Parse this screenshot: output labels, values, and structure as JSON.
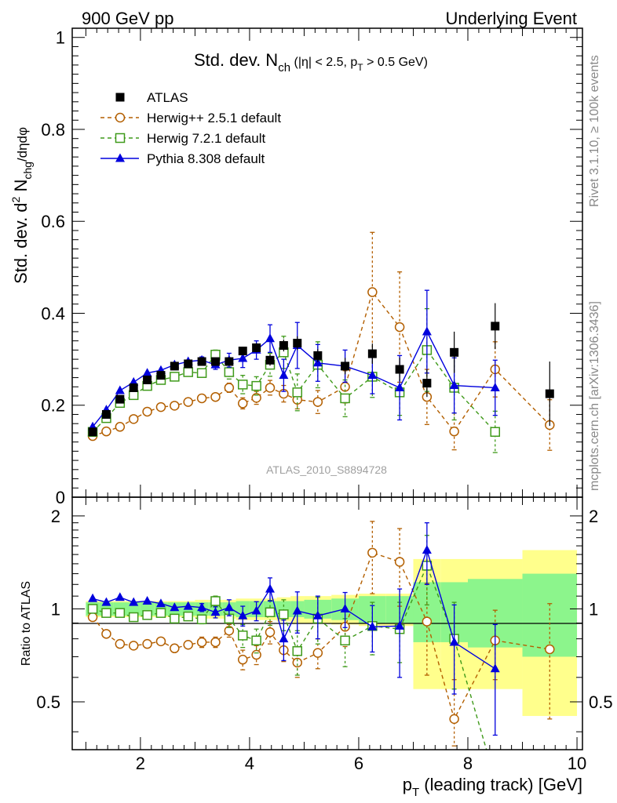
{
  "header": {
    "left": "900 GeV pp",
    "right": "Underlying Event"
  },
  "side_text": {
    "top": "Rivet 3.1.10, ≥ 100k events",
    "bottom": "mcplots.cern.ch [arXiv:1306.3436]"
  },
  "watermark": "ATLAS_2010_S8894728",
  "chart_data": {
    "type": "scatter",
    "title": {
      "main": "Std. dev. N",
      "sub": "ch",
      "rest": " (|η| < 2.5, p",
      "sub2": "T",
      "tail": " > 0.5 GeV)"
    },
    "ylabel": {
      "a": "Std. dev. d",
      "sup": "2",
      "b": " N",
      "sub": "chg",
      "c": "/dηdφ"
    },
    "ratio_ylabel": "Ratio to ATLAS",
    "xlabel": {
      "p": "p",
      "sub": "T",
      "rest": " (leading track) [GeV]"
    },
    "xlim": [
      0.75,
      10.1
    ],
    "ylim": [
      0,
      1.02
    ],
    "ratio_ylim": [
      0.35,
      2.3
    ],
    "x_ticks": [
      "2",
      "4",
      "6",
      "8",
      "10"
    ],
    "y_ticks": [
      "0",
      "0.2",
      "0.4",
      "0.6",
      "0.8",
      "1"
    ],
    "ratio_ticks": [
      "0.5",
      "1",
      "2"
    ],
    "legend": [
      {
        "label": "ATLAS",
        "color": "#000000",
        "marker": "square-filled"
      },
      {
        "label": "Herwig++ 2.5.1 default",
        "color": "#b35f00",
        "marker": "circle-open"
      },
      {
        "label": "Herwig 7.2.1 default",
        "color": "#3f9a1a",
        "marker": "square-open"
      },
      {
        "label": "Pythia 8.308 default",
        "color": "#0000dd",
        "marker": "triangle-filled"
      }
    ],
    "x": [
      1.125,
      1.375,
      1.625,
      1.875,
      2.125,
      2.375,
      2.625,
      2.875,
      3.125,
      3.375,
      3.625,
      3.875,
      4.125,
      4.375,
      4.625,
      4.875,
      5.25,
      5.75,
      6.25,
      6.75,
      7.25,
      7.75,
      8.5,
      9.5
    ],
    "xerr": [
      0.125,
      0.125,
      0.125,
      0.125,
      0.125,
      0.125,
      0.125,
      0.125,
      0.125,
      0.125,
      0.125,
      0.125,
      0.125,
      0.125,
      0.125,
      0.125,
      0.25,
      0.25,
      0.25,
      0.25,
      0.25,
      0.25,
      0.5,
      0.5
    ],
    "series": [
      {
        "name": "ATLAS",
        "values": [
          0.142,
          0.18,
          0.213,
          0.238,
          0.255,
          0.265,
          0.285,
          0.29,
          0.295,
          0.295,
          0.295,
          0.318,
          0.325,
          0.298,
          0.33,
          0.335,
          0.308,
          0.285,
          0.312,
          0.278,
          0.248,
          0.315,
          0.372,
          0.225
        ],
        "err": [
          0.003,
          0.003,
          0.003,
          0.003,
          0.004,
          0.004,
          0.005,
          0.005,
          0.006,
          0.007,
          0.008,
          0.009,
          0.01,
          0.012,
          0.013,
          0.015,
          0.014,
          0.018,
          0.022,
          0.025,
          0.03,
          0.045,
          0.05,
          0.07
        ],
        "band_total": [
          0.06,
          0.06,
          0.06,
          0.06,
          0.06,
          0.06,
          0.06,
          0.06,
          0.07,
          0.07,
          0.07,
          0.08,
          0.08,
          0.08,
          0.09,
          0.1,
          0.1,
          0.11,
          0.12,
          0.12,
          0.45,
          0.45,
          0.45,
          0.55
        ],
        "band_stat": [
          0.05,
          0.05,
          0.05,
          0.05,
          0.05,
          0.05,
          0.05,
          0.05,
          0.05,
          0.05,
          0.05,
          0.06,
          0.06,
          0.06,
          0.06,
          0.06,
          0.07,
          0.08,
          0.1,
          0.1,
          0.22,
          0.22,
          0.25,
          0.3
        ]
      },
      {
        "name": "Herwig++ 2.5.1 default",
        "values": [
          0.133,
          0.143,
          0.153,
          0.17,
          0.186,
          0.196,
          0.199,
          0.207,
          0.215,
          0.218,
          0.238,
          0.204,
          0.216,
          0.238,
          0.225,
          0.212,
          0.207,
          0.24,
          0.446,
          0.37,
          0.218,
          0.143,
          0.278,
          0.157
        ],
        "err": [
          0.004,
          0.004,
          0.004,
          0.005,
          0.005,
          0.005,
          0.006,
          0.006,
          0.007,
          0.008,
          0.01,
          0.012,
          0.014,
          0.016,
          0.018,
          0.02,
          0.025,
          0.035,
          0.13,
          0.12,
          0.06,
          0.04,
          0.06,
          0.055
        ]
      },
      {
        "name": "Herwig 7.2.1 default",
        "values": [
          0.142,
          0.172,
          0.205,
          0.222,
          0.242,
          0.255,
          0.262,
          0.272,
          0.27,
          0.31,
          0.272,
          0.245,
          0.242,
          0.288,
          0.315,
          0.228,
          0.288,
          0.215,
          0.262,
          0.228,
          0.32,
          0.238,
          0.142,
          0.0
        ],
        "err": [
          0.004,
          0.004,
          0.004,
          0.005,
          0.005,
          0.005,
          0.006,
          0.006,
          0.007,
          0.01,
          0.015,
          0.02,
          0.02,
          0.025,
          0.035,
          0.04,
          0.05,
          0.04,
          0.045,
          0.05,
          0.09,
          0.07,
          0.045,
          0.0
        ]
      },
      {
        "name": "Pythia 8.308 default",
        "values": [
          0.153,
          0.19,
          0.232,
          0.25,
          0.27,
          0.276,
          0.288,
          0.295,
          0.298,
          0.288,
          0.298,
          0.302,
          0.32,
          0.345,
          0.265,
          0.33,
          0.292,
          0.285,
          0.265,
          0.238,
          0.36,
          0.243,
          0.238,
          0.0
        ],
        "err": [
          0.004,
          0.004,
          0.004,
          0.005,
          0.005,
          0.005,
          0.006,
          0.006,
          0.007,
          0.01,
          0.015,
          0.02,
          0.02,
          0.03,
          0.035,
          0.05,
          0.04,
          0.035,
          0.04,
          0.07,
          0.09,
          0.06,
          0.06,
          0.0
        ]
      }
    ],
    "ratio_series": [
      {
        "name": "Herwig++ 2.5.1 default",
        "values": [
          0.94,
          0.83,
          0.77,
          0.76,
          0.77,
          0.785,
          0.745,
          0.765,
          0.78,
          0.78,
          0.85,
          0.685,
          0.71,
          0.84,
          0.735,
          0.67,
          0.72,
          0.875,
          1.52,
          1.42,
          0.91,
          0.44,
          0.79,
          0.74
        ],
        "err": [
          0.02,
          0.02,
          0.02,
          0.02,
          0.02,
          0.02,
          0.02,
          0.025,
          0.03,
          0.03,
          0.04,
          0.05,
          0.05,
          0.07,
          0.06,
          0.07,
          0.08,
          0.12,
          0.4,
          0.4,
          0.3,
          0.15,
          0.2,
          0.3
        ]
      },
      {
        "name": "Herwig 7.2.1 default",
        "values": [
          1.0,
          0.97,
          0.97,
          0.94,
          0.955,
          0.97,
          0.93,
          0.945,
          0.925,
          1.06,
          0.93,
          0.82,
          0.79,
          0.975,
          0.96,
          0.73,
          0.93,
          0.79,
          0.88,
          0.86,
          1.38,
          0.8,
          0.28
        ],
        "err": [
          0.02,
          0.02,
          0.02,
          0.02,
          0.02,
          0.02,
          0.02,
          0.025,
          0.03,
          0.04,
          0.06,
          0.07,
          0.07,
          0.09,
          0.11,
          0.12,
          0.16,
          0.14,
          0.17,
          0.19,
          0.35,
          0.25,
          0.15
        ]
      },
      {
        "name": "Pythia 8.308 default",
        "values": [
          1.08,
          1.05,
          1.09,
          1.05,
          1.06,
          1.04,
          1.01,
          1.02,
          1.01,
          0.975,
          1.01,
          0.95,
          0.985,
          1.16,
          0.8,
          0.985,
          0.95,
          1.0,
          0.875,
          0.88,
          1.55,
          0.78,
          0.64
        ],
        "err": [
          0.02,
          0.02,
          0.02,
          0.02,
          0.02,
          0.02,
          0.02,
          0.025,
          0.03,
          0.04,
          0.06,
          0.07,
          0.07,
          0.1,
          0.12,
          0.15,
          0.15,
          0.13,
          0.15,
          0.28,
          0.35,
          0.25,
          0.25
        ]
      }
    ]
  }
}
